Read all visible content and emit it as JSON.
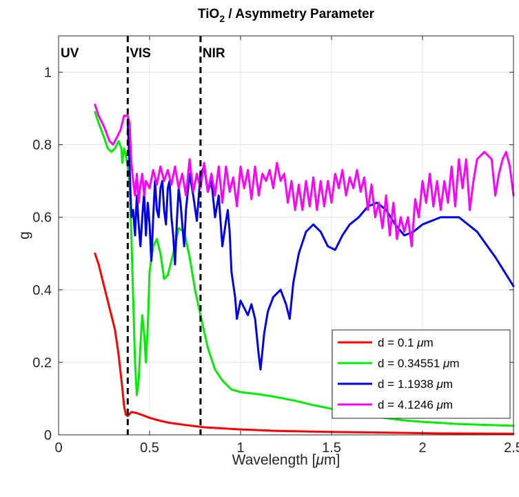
{
  "chart_data": {
    "type": "line",
    "title": "TiO",
    "title_sub": "2",
    "title_rest": " / Asymmetry Parameter",
    "xlabel_pre": "Wavelength [",
    "xlabel_mu": "μ",
    "xlabel_post": "m]",
    "ylabel": "g",
    "xlim": [
      0,
      2.5
    ],
    "ylim": [
      0,
      1.1
    ],
    "xticks": [
      0,
      0.5,
      1,
      1.5,
      2,
      2.5
    ],
    "xtick_labels": [
      "0",
      "0.5",
      "1",
      "1.5",
      "2",
      "2.5"
    ],
    "yticks": [
      0,
      0.2,
      0.4,
      0.6,
      0.8,
      1
    ],
    "ytick_labels": [
      "0",
      "0.2",
      "0.4",
      "0.6",
      "0.8",
      "1"
    ],
    "grid": true,
    "legend_position": "bottom-right",
    "vlines": [
      0.38,
      0.78
    ],
    "region_labels": [
      {
        "text": "UV",
        "x": 0.0
      },
      {
        "text": "VIS",
        "x": 0.38
      },
      {
        "text": "NIR",
        "x": 0.78
      }
    ],
    "series": [
      {
        "name": "d = 0.1 μm",
        "legend_pre": "d = 0.1 ",
        "color": "#ff0000",
        "points": [
          [
            0.2,
            0.5
          ],
          [
            0.22,
            0.47
          ],
          [
            0.25,
            0.41
          ],
          [
            0.28,
            0.35
          ],
          [
            0.31,
            0.29
          ],
          [
            0.33,
            0.22
          ],
          [
            0.35,
            0.13
          ],
          [
            0.36,
            0.08
          ],
          [
            0.37,
            0.055
          ],
          [
            0.38,
            0.052
          ],
          [
            0.4,
            0.063
          ],
          [
            0.43,
            0.06
          ],
          [
            0.47,
            0.053
          ],
          [
            0.5,
            0.047
          ],
          [
            0.55,
            0.04
          ],
          [
            0.6,
            0.034
          ],
          [
            0.7,
            0.027
          ],
          [
            0.8,
            0.021
          ],
          [
            1.0,
            0.015
          ],
          [
            1.2,
            0.011
          ],
          [
            1.5,
            0.008
          ],
          [
            1.8,
            0.006
          ],
          [
            2.1,
            0.004
          ],
          [
            2.5,
            0.003
          ]
        ]
      },
      {
        "name": "d = 0.34551 μm",
        "legend_pre": "d = 0.34551 ",
        "color": "#00ee00",
        "points": [
          [
            0.2,
            0.89
          ],
          [
            0.22,
            0.86
          ],
          [
            0.25,
            0.82
          ],
          [
            0.27,
            0.79
          ],
          [
            0.29,
            0.78
          ],
          [
            0.31,
            0.79
          ],
          [
            0.33,
            0.81
          ],
          [
            0.345,
            0.79
          ],
          [
            0.35,
            0.75
          ],
          [
            0.36,
            0.79
          ],
          [
            0.37,
            0.77
          ],
          [
            0.38,
            0.74
          ],
          [
            0.39,
            0.69
          ],
          [
            0.4,
            0.55
          ],
          [
            0.41,
            0.38
          ],
          [
            0.42,
            0.2
          ],
          [
            0.43,
            0.11
          ],
          [
            0.44,
            0.15
          ],
          [
            0.45,
            0.25
          ],
          [
            0.46,
            0.33
          ],
          [
            0.47,
            0.28
          ],
          [
            0.48,
            0.2
          ],
          [
            0.49,
            0.3
          ],
          [
            0.5,
            0.45
          ],
          [
            0.52,
            0.52
          ],
          [
            0.54,
            0.54
          ],
          [
            0.56,
            0.5
          ],
          [
            0.58,
            0.43
          ],
          [
            0.6,
            0.44
          ],
          [
            0.63,
            0.5
          ],
          [
            0.66,
            0.57
          ],
          [
            0.69,
            0.56
          ],
          [
            0.72,
            0.49
          ],
          [
            0.75,
            0.4
          ],
          [
            0.78,
            0.33
          ],
          [
            0.82,
            0.24
          ],
          [
            0.86,
            0.18
          ],
          [
            0.9,
            0.15
          ],
          [
            0.95,
            0.125
          ],
          [
            1.0,
            0.118
          ],
          [
            1.1,
            0.112
          ],
          [
            1.2,
            0.104
          ],
          [
            1.3,
            0.094
          ],
          [
            1.4,
            0.082
          ],
          [
            1.5,
            0.072
          ],
          [
            1.6,
            0.061
          ],
          [
            1.7,
            0.053
          ],
          [
            1.8,
            0.046
          ],
          [
            1.9,
            0.04
          ],
          [
            2.0,
            0.036
          ],
          [
            2.2,
            0.03
          ],
          [
            2.5,
            0.025
          ]
        ]
      },
      {
        "name": "d = 1.1938 μm",
        "legend_pre": "d = 1.1938 ",
        "color": "#0000ee",
        "points": [
          [
            0.38,
            0.86
          ],
          [
            0.39,
            0.74
          ],
          [
            0.4,
            0.6
          ],
          [
            0.41,
            0.62
          ],
          [
            0.42,
            0.55
          ],
          [
            0.43,
            0.66
          ],
          [
            0.44,
            0.58
          ],
          [
            0.45,
            0.52
          ],
          [
            0.46,
            0.6
          ],
          [
            0.47,
            0.67
          ],
          [
            0.48,
            0.55
          ],
          [
            0.49,
            0.64
          ],
          [
            0.5,
            0.58
          ],
          [
            0.51,
            0.48
          ],
          [
            0.52,
            0.6
          ],
          [
            0.53,
            0.7
          ],
          [
            0.54,
            0.62
          ],
          [
            0.55,
            0.6
          ],
          [
            0.56,
            0.68
          ],
          [
            0.57,
            0.7
          ],
          [
            0.58,
            0.62
          ],
          [
            0.59,
            0.58
          ],
          [
            0.6,
            0.68
          ],
          [
            0.61,
            0.7
          ],
          [
            0.62,
            0.6
          ],
          [
            0.63,
            0.55
          ],
          [
            0.64,
            0.47
          ],
          [
            0.65,
            0.59
          ],
          [
            0.66,
            0.68
          ],
          [
            0.67,
            0.64
          ],
          [
            0.68,
            0.58
          ],
          [
            0.69,
            0.52
          ],
          [
            0.7,
            0.62
          ],
          [
            0.72,
            0.72
          ],
          [
            0.74,
            0.66
          ],
          [
            0.76,
            0.59
          ],
          [
            0.78,
            0.72
          ],
          [
            0.8,
            0.74
          ],
          [
            0.82,
            0.67
          ],
          [
            0.84,
            0.7
          ],
          [
            0.86,
            0.6
          ],
          [
            0.88,
            0.66
          ],
          [
            0.9,
            0.52
          ],
          [
            0.92,
            0.59
          ],
          [
            0.93,
            0.62
          ],
          [
            0.94,
            0.56
          ],
          [
            0.95,
            0.45
          ],
          [
            0.97,
            0.38
          ],
          [
            0.98,
            0.32
          ],
          [
            1.0,
            0.37
          ],
          [
            1.02,
            0.35
          ],
          [
            1.04,
            0.33
          ],
          [
            1.06,
            0.36
          ],
          [
            1.08,
            0.32
          ],
          [
            1.1,
            0.22
          ],
          [
            1.11,
            0.18
          ],
          [
            1.13,
            0.28
          ],
          [
            1.15,
            0.34
          ],
          [
            1.18,
            0.38
          ],
          [
            1.22,
            0.4
          ],
          [
            1.25,
            0.36
          ],
          [
            1.27,
            0.32
          ],
          [
            1.29,
            0.42
          ],
          [
            1.32,
            0.5
          ],
          [
            1.36,
            0.56
          ],
          [
            1.4,
            0.58
          ],
          [
            1.44,
            0.56
          ],
          [
            1.48,
            0.52
          ],
          [
            1.52,
            0.51
          ],
          [
            1.56,
            0.55
          ],
          [
            1.6,
            0.58
          ],
          [
            1.65,
            0.6
          ],
          [
            1.7,
            0.63
          ],
          [
            1.75,
            0.64
          ],
          [
            1.8,
            0.62
          ],
          [
            1.85,
            0.58
          ],
          [
            1.9,
            0.55
          ],
          [
            1.95,
            0.56
          ],
          [
            2.0,
            0.58
          ],
          [
            2.1,
            0.6
          ],
          [
            2.2,
            0.6
          ],
          [
            2.3,
            0.56
          ],
          [
            2.4,
            0.49
          ],
          [
            2.5,
            0.41
          ]
        ]
      },
      {
        "name": "d = 4.1246 μm",
        "legend_pre": "d = 4.1246 ",
        "color": "#ff00ff",
        "points": [
          [
            0.2,
            0.91
          ],
          [
            0.22,
            0.88
          ],
          [
            0.25,
            0.85
          ],
          [
            0.28,
            0.81
          ],
          [
            0.3,
            0.8
          ],
          [
            0.32,
            0.82
          ],
          [
            0.34,
            0.84
          ],
          [
            0.36,
            0.88
          ],
          [
            0.38,
            0.88
          ],
          [
            0.39,
            0.86
          ],
          [
            0.4,
            0.75
          ],
          [
            0.41,
            0.7
          ],
          [
            0.42,
            0.66
          ],
          [
            0.43,
            0.72
          ],
          [
            0.44,
            0.64
          ],
          [
            0.45,
            0.69
          ],
          [
            0.46,
            0.72
          ],
          [
            0.47,
            0.66
          ],
          [
            0.48,
            0.7
          ],
          [
            0.5,
            0.68
          ],
          [
            0.52,
            0.73
          ],
          [
            0.54,
            0.69
          ],
          [
            0.56,
            0.74
          ],
          [
            0.58,
            0.7
          ],
          [
            0.6,
            0.73
          ],
          [
            0.62,
            0.69
          ],
          [
            0.64,
            0.74
          ],
          [
            0.66,
            0.68
          ],
          [
            0.68,
            0.72
          ],
          [
            0.7,
            0.66
          ],
          [
            0.72,
            0.76
          ],
          [
            0.74,
            0.67
          ],
          [
            0.76,
            0.72
          ],
          [
            0.78,
            0.68
          ],
          [
            0.8,
            0.75
          ],
          [
            0.82,
            0.67
          ],
          [
            0.84,
            0.72
          ],
          [
            0.86,
            0.66
          ],
          [
            0.88,
            0.74
          ],
          [
            0.9,
            0.64
          ],
          [
            0.92,
            0.74
          ],
          [
            0.94,
            0.67
          ],
          [
            0.96,
            0.71
          ],
          [
            0.98,
            0.63
          ],
          [
            1.0,
            0.74
          ],
          [
            1.02,
            0.68
          ],
          [
            1.04,
            0.73
          ],
          [
            1.06,
            0.65
          ],
          [
            1.08,
            0.74
          ],
          [
            1.1,
            0.66
          ],
          [
            1.12,
            0.72
          ],
          [
            1.14,
            0.7
          ],
          [
            1.16,
            0.73
          ],
          [
            1.18,
            0.68
          ],
          [
            1.2,
            0.75
          ],
          [
            1.22,
            0.7
          ],
          [
            1.24,
            0.72
          ],
          [
            1.26,
            0.64
          ],
          [
            1.28,
            0.7
          ],
          [
            1.3,
            0.62
          ],
          [
            1.32,
            0.69
          ],
          [
            1.34,
            0.62
          ],
          [
            1.36,
            0.7
          ],
          [
            1.38,
            0.63
          ],
          [
            1.4,
            0.71
          ],
          [
            1.42,
            0.62
          ],
          [
            1.44,
            0.7
          ],
          [
            1.46,
            0.63
          ],
          [
            1.48,
            0.7
          ],
          [
            1.5,
            0.64
          ],
          [
            1.52,
            0.72
          ],
          [
            1.54,
            0.68
          ],
          [
            1.56,
            0.73
          ],
          [
            1.58,
            0.66
          ],
          [
            1.6,
            0.71
          ],
          [
            1.62,
            0.68
          ],
          [
            1.64,
            0.73
          ],
          [
            1.66,
            0.67
          ],
          [
            1.68,
            0.71
          ],
          [
            1.7,
            0.62
          ],
          [
            1.72,
            0.69
          ],
          [
            1.74,
            0.6
          ],
          [
            1.76,
            0.64
          ],
          [
            1.78,
            0.57
          ],
          [
            1.8,
            0.66
          ],
          [
            1.82,
            0.55
          ],
          [
            1.84,
            0.64
          ],
          [
            1.86,
            0.54
          ],
          [
            1.88,
            0.6
          ],
          [
            1.9,
            0.56
          ],
          [
            1.92,
            0.6
          ],
          [
            1.94,
            0.52
          ],
          [
            1.96,
            0.65
          ],
          [
            1.98,
            0.6
          ],
          [
            2.0,
            0.7
          ],
          [
            2.02,
            0.64
          ],
          [
            2.04,
            0.72
          ],
          [
            2.06,
            0.63
          ],
          [
            2.08,
            0.7
          ],
          [
            2.1,
            0.62
          ],
          [
            2.12,
            0.7
          ],
          [
            2.14,
            0.64
          ],
          [
            2.16,
            0.74
          ],
          [
            2.18,
            0.63
          ],
          [
            2.2,
            0.76
          ],
          [
            2.22,
            0.68
          ],
          [
            2.24,
            0.76
          ],
          [
            2.26,
            0.62
          ],
          [
            2.28,
            0.7
          ],
          [
            2.3,
            0.76
          ],
          [
            2.34,
            0.78
          ],
          [
            2.38,
            0.76
          ],
          [
            2.4,
            0.66
          ],
          [
            2.42,
            0.72
          ],
          [
            2.44,
            0.76
          ],
          [
            2.46,
            0.78
          ],
          [
            2.48,
            0.74
          ],
          [
            2.5,
            0.66
          ]
        ]
      }
    ]
  }
}
